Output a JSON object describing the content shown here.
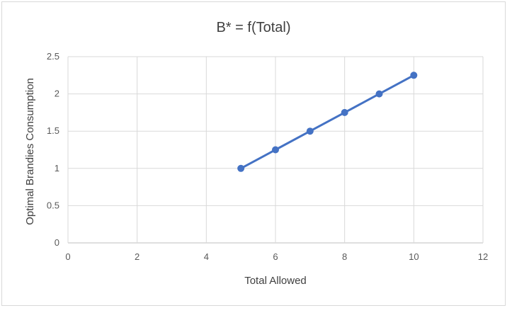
{
  "chart_data": {
    "type": "scatter",
    "title": "B* = f(Total)",
    "xlabel": "Total Allowed",
    "ylabel": "Optimal Brandies Consumption",
    "xlim": [
      0,
      12
    ],
    "ylim": [
      0,
      2.5
    ],
    "x_ticks": [
      "0",
      "2",
      "4",
      "6",
      "8",
      "10",
      "12"
    ],
    "y_ticks": [
      "0",
      "0.5",
      "1",
      "1.5",
      "2",
      "2.5"
    ],
    "grid": true,
    "legend": "none",
    "series": [
      {
        "x": [
          5,
          6,
          7,
          8,
          9,
          10
        ],
        "y": [
          1,
          1.25,
          1.5,
          1.75,
          2,
          2.25
        ],
        "color": "#4472c4",
        "style": "line-with-markers"
      }
    ]
  }
}
